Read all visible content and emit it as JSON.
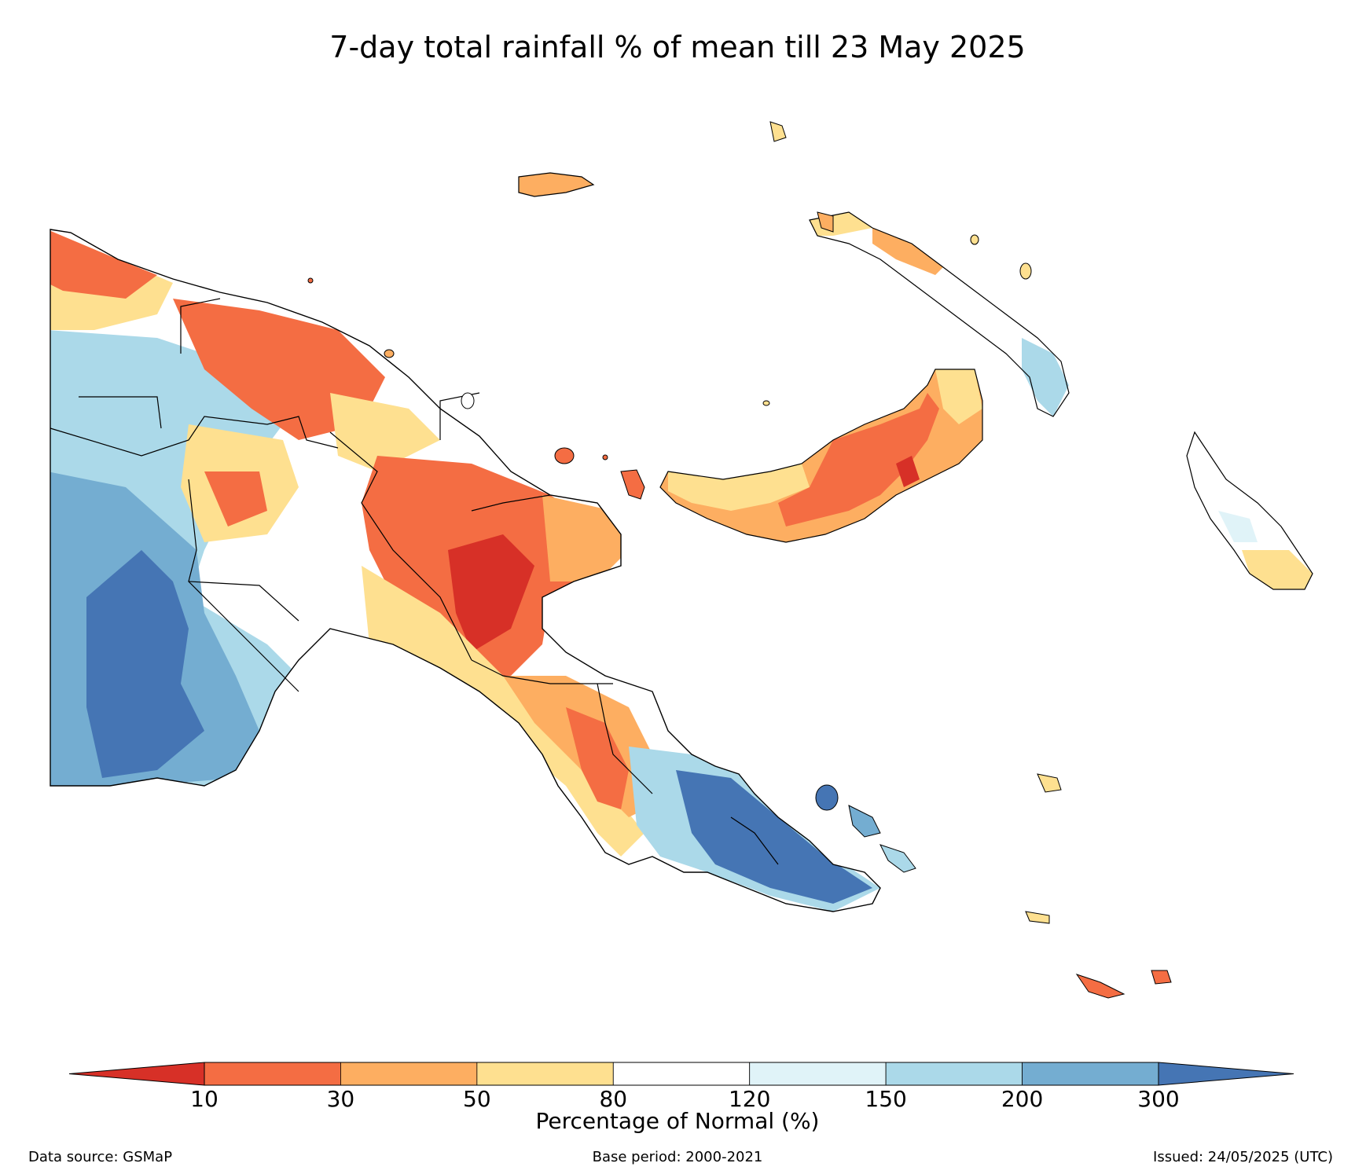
{
  "title": "7-day total rainfall % of mean till 23 May 2025",
  "colorbar": {
    "label": "Percentage of Normal (%)",
    "ticks": [
      "10",
      "30",
      "50",
      "80",
      "120",
      "150",
      "200",
      "300"
    ],
    "colors": [
      "#d73027",
      "#f46d43",
      "#fdae61",
      "#fee090",
      "#ffffff",
      "#e0f3f8",
      "#abd9e9",
      "#74add1",
      "#4575b4"
    ]
  },
  "footer": {
    "source": "Data source: GSMaP",
    "base_period": "Base period: 2000-2021",
    "issued": "Issued: 24/05/2025 (UTC)"
  }
}
